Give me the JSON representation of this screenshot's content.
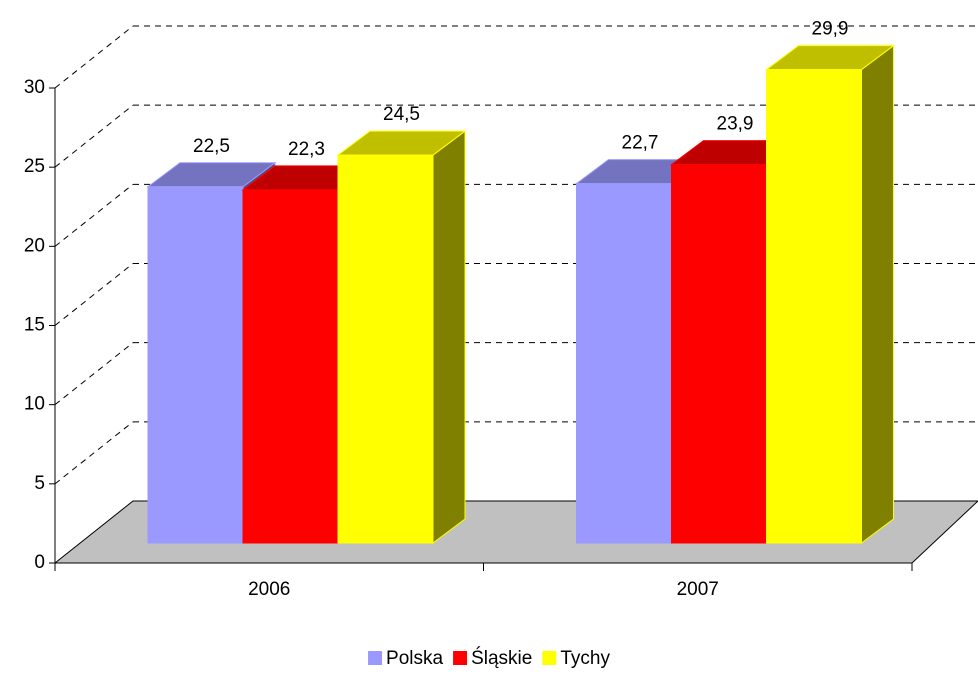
{
  "chart_data": {
    "type": "bar3d",
    "categories": [
      "2006",
      "2007"
    ],
    "series": [
      {
        "name": "Polska",
        "color": "#9999ff",
        "values": [
          22.5,
          22.7
        ],
        "value_labels": [
          "22,5",
          "22,7"
        ]
      },
      {
        "name": "Śląskie",
        "color": "#ff0000",
        "values": [
          22.3,
          23.9
        ],
        "value_labels": [
          "22,3",
          "23,9"
        ]
      },
      {
        "name": "Tychy",
        "color": "#ffff00",
        "values": [
          24.5,
          29.9
        ],
        "value_labels": [
          "24,5",
          "29,9"
        ]
      }
    ],
    "ylim": [
      0,
      30
    ],
    "yticks": [
      0,
      5,
      10,
      15,
      20,
      25,
      30
    ],
    "grid": true,
    "legend": "bottom"
  }
}
